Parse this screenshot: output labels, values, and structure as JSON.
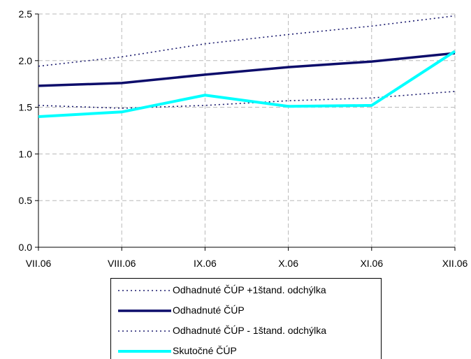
{
  "chart_data": {
    "type": "line",
    "title": "",
    "xlabel": "",
    "ylabel": "",
    "categories": [
      "VII.06",
      "VIII.06",
      "IX.06",
      "X.06",
      "XI.06",
      "XII.06"
    ],
    "ylim": [
      0.0,
      2.5
    ],
    "yticks": [
      "0.0",
      "0.5",
      "1.0",
      "1.5",
      "2.0",
      "2.5"
    ],
    "grid": true,
    "legend_position": "bottom",
    "series": [
      {
        "name": "Odhadnuté ČÚP +1štand. odchýlka",
        "values": [
          1.94,
          2.04,
          2.18,
          2.28,
          2.37,
          2.48
        ],
        "color": "#1a1a6e",
        "style": "dotted"
      },
      {
        "name": "Odhadnuté ČÚP",
        "values": [
          1.73,
          1.76,
          1.85,
          1.93,
          1.99,
          2.08
        ],
        "color": "#0d0d6b",
        "style": "solid"
      },
      {
        "name": "Odhadnuté ČÚP - 1štand. odchýlka",
        "values": [
          1.52,
          1.49,
          1.52,
          1.57,
          1.6,
          1.67
        ],
        "color": "#1a1a6e",
        "style": "dotted"
      },
      {
        "name": "Skutočné ČÚP",
        "values": [
          1.4,
          1.45,
          1.63,
          1.51,
          1.52,
          2.1
        ],
        "color": "#00ffff",
        "style": "solid"
      }
    ]
  }
}
